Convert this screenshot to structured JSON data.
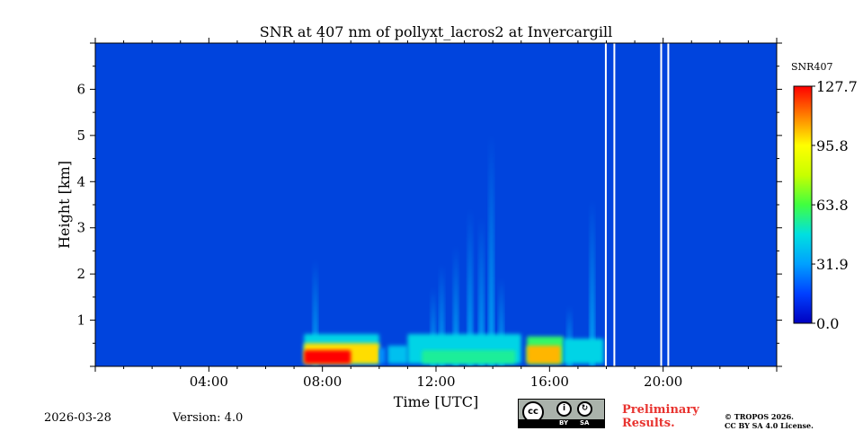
{
  "chart_data": {
    "type": "heatmap",
    "title": "SNR at 407 nm of pollyxt_lacros2 at Invercargill",
    "xlabel": "Time [UTC]",
    "ylabel": "Height [km]",
    "xlim_hours": [
      0,
      24
    ],
    "ylim_km": [
      0,
      7
    ],
    "x_ticks": [
      {
        "hour": 4,
        "label": "04:00"
      },
      {
        "hour": 8,
        "label": "08:00"
      },
      {
        "hour": 12,
        "label": "12:00"
      },
      {
        "hour": 16,
        "label": "16:00"
      },
      {
        "hour": 20,
        "label": "20:00"
      }
    ],
    "y_ticks": [
      {
        "km": 1,
        "label": "1"
      },
      {
        "km": 2,
        "label": "2"
      },
      {
        "km": 3,
        "label": "3"
      },
      {
        "km": 4,
        "label": "4"
      },
      {
        "km": 5,
        "label": "5"
      },
      {
        "km": 6,
        "label": "6"
      }
    ],
    "colorbar": {
      "label": "SNR407",
      "min": 0.0,
      "max": 127.7,
      "ticks": [
        {
          "value": 0.0,
          "label": "0.0"
        },
        {
          "value": 31.9,
          "label": "31.9"
        },
        {
          "value": 63.8,
          "label": "63.8"
        },
        {
          "value": 95.8,
          "label": "95.8"
        },
        {
          "value": 127.7,
          "label": "127.7"
        }
      ],
      "colormap": [
        "#0000c0",
        "#0040ff",
        "#00a0ff",
        "#00e0e0",
        "#40ff40",
        "#c8ff00",
        "#ffff00",
        "#ff8000",
        "#ff0000"
      ]
    },
    "background_value": 0.0,
    "data_gaps_hours": [
      [
        17.95,
        18.0
      ],
      [
        18.25,
        18.3
      ],
      [
        19.9,
        19.95
      ],
      [
        20.15,
        20.2
      ]
    ],
    "signal_regions": [
      {
        "t_start": 7.35,
        "t_end": 10.0,
        "h_top_km": 0.7,
        "value": 45
      },
      {
        "t_start": 7.35,
        "t_end": 10.0,
        "h_top_km": 0.5,
        "value": 100
      },
      {
        "t_start": 7.35,
        "t_end": 9.0,
        "h_top_km": 0.35,
        "value": 127
      },
      {
        "t_start": 10.0,
        "t_end": 10.2,
        "h_top_km": 0.4,
        "value": 30
      },
      {
        "t_start": 10.3,
        "t_end": 11.0,
        "h_top_km": 0.45,
        "value": 40
      },
      {
        "t_start": 11.0,
        "t_end": 15.0,
        "h_top_km": 0.7,
        "value": 45
      },
      {
        "t_start": 11.5,
        "t_end": 14.8,
        "h_top_km": 0.35,
        "value": 55
      },
      {
        "t_start": 15.2,
        "t_end": 16.5,
        "h_top_km": 0.65,
        "value": 60
      },
      {
        "t_start": 15.2,
        "t_end": 16.4,
        "h_top_km": 0.45,
        "value": 105
      },
      {
        "t_start": 16.5,
        "t_end": 17.9,
        "h_top_km": 0.6,
        "value": 45
      }
    ],
    "plumes": [
      {
        "t": 7.75,
        "h_top_km": 2.3,
        "value": 15
      },
      {
        "t": 11.9,
        "h_top_km": 1.7,
        "value": 10
      },
      {
        "t": 12.2,
        "h_top_km": 2.2,
        "value": 12
      },
      {
        "t": 12.7,
        "h_top_km": 2.6,
        "value": 14
      },
      {
        "t": 13.2,
        "h_top_km": 3.4,
        "value": 15
      },
      {
        "t": 13.6,
        "h_top_km": 3.2,
        "value": 14
      },
      {
        "t": 13.95,
        "h_top_km": 5.0,
        "value": 20
      },
      {
        "t": 14.3,
        "h_top_km": 1.9,
        "value": 10
      },
      {
        "t": 16.7,
        "h_top_km": 1.3,
        "value": 8
      },
      {
        "t": 17.5,
        "h_top_km": 3.6,
        "value": 14
      }
    ]
  },
  "footer": {
    "date": "2026-03-28",
    "version": "Version: 4.0",
    "preliminary_line1": "Preliminary",
    "preliminary_line2": "Results.",
    "copyright_line1": "© TROPOS 2026.",
    "copyright_line2": "CC BY SA 4.0 License.",
    "cc_badge": {
      "cc": "cc",
      "by": "BY",
      "sa": "SA"
    }
  }
}
